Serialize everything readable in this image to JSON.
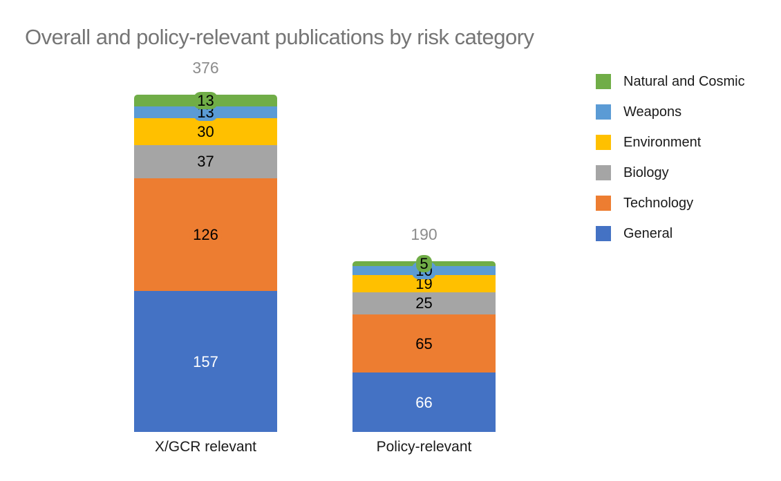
{
  "chart_data": {
    "type": "bar",
    "subtype": "stacked-vertical",
    "title": "Overall and policy-relevant publications by risk category",
    "categories": [
      "X/GCR relevant",
      "Policy-relevant"
    ],
    "totals": [
      376,
      190
    ],
    "series": [
      {
        "name": "General",
        "color": "#4472C4",
        "label_text_color": "#ffffff",
        "values": [
          157,
          66
        ]
      },
      {
        "name": "Technology",
        "color": "#ED7D31",
        "label_text_color": "#000000",
        "values": [
          126,
          65
        ]
      },
      {
        "name": "Biology",
        "color": "#A5A5A5",
        "label_text_color": "#000000",
        "values": [
          37,
          25
        ]
      },
      {
        "name": "Environment",
        "color": "#FFC000",
        "label_text_color": "#000000",
        "values": [
          30,
          19
        ]
      },
      {
        "name": "Weapons",
        "color": "#5B9BD5",
        "label_text_color": "#000000",
        "values": [
          13,
          10
        ]
      },
      {
        "name": "Natural and Cosmic",
        "color": "#70AD47",
        "label_text_color": "#000000",
        "values": [
          13,
          5
        ]
      }
    ],
    "legend": [
      {
        "label": "Natural and Cosmic",
        "color": "#70AD47"
      },
      {
        "label": "Weapons",
        "color": "#5B9BD5"
      },
      {
        "label": "Environment",
        "color": "#FFC000"
      },
      {
        "label": "Biology",
        "color": "#A5A5A5"
      },
      {
        "label": "Technology",
        "color": "#ED7D31"
      },
      {
        "label": "General",
        "color": "#4472C4"
      }
    ],
    "legend_position": "right",
    "grid": false,
    "value_axis_visible": false,
    "stack_order_note": "series listed bottom-to-top; legend listed top-to-bottom",
    "title_color": "#757575",
    "total_label_color": "#8c8c8c"
  }
}
